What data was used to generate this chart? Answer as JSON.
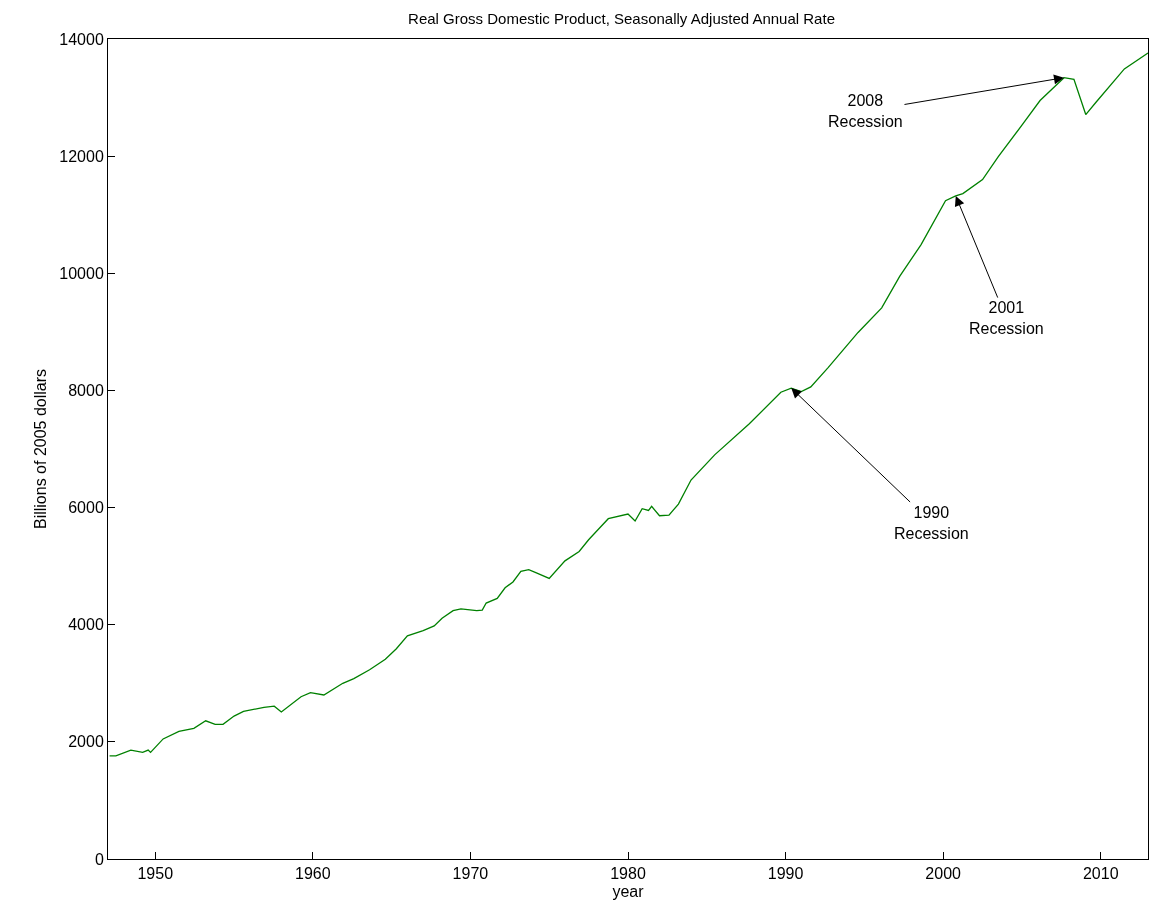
{
  "chart_data": {
    "type": "line",
    "title": "Real Gross Domestic Product, Seasonally Adjusted Annual Rate",
    "xlabel": "year",
    "ylabel": "Billions of 2005 dollars",
    "xlim": [
      1947,
      2013
    ],
    "xticks": [
      1950,
      1960,
      1970,
      1980,
      1990,
      2000,
      2010
    ],
    "ylim": [
      0,
      14000
    ],
    "yticks": [
      0,
      2000,
      4000,
      6000,
      8000,
      10000,
      12000,
      14000
    ],
    "marker": "none",
    "line_style": "solid",
    "series": [
      {
        "color": "#008000",
        "x": [
          1947.1,
          1947.5,
          1948.45,
          1949.2,
          1949.55,
          1949.7,
          1950.5,
          1951.5,
          1952.45,
          1953.2,
          1953.8,
          1954.3,
          1955.0,
          1955.6,
          1956.9,
          1957.55,
          1958.0,
          1959.25,
          1959.85,
          1960.7,
          1961.9,
          1962.6,
          1963.6,
          1964.6,
          1965.3,
          1966.0,
          1967.0,
          1967.7,
          1968.2,
          1968.9,
          1969.4,
          1970.4,
          1970.75,
          1971.0,
          1971.7,
          1972.2,
          1972.7,
          1973.2,
          1973.7,
          1974.15,
          1975.0,
          1976.0,
          1976.9,
          1977.5,
          1978.3,
          1978.75,
          1980.0,
          1980.45,
          1980.9,
          1981.3,
          1981.5,
          1982.0,
          1982.6,
          1983.2,
          1984.0,
          1985.5,
          1987.7,
          1989.7,
          1990.36,
          1991.0,
          1991.6,
          1992.7,
          1994.6,
          1996.1,
          1997.25,
          1998.6,
          2000.15,
          2000.8,
          2001.25,
          2002.5,
          2003.5,
          2005.0,
          2006.15,
          2007.67,
          2008.3,
          2009.05,
          2009.7,
          2011.5,
          2013.0
        ],
        "values": [
          1760,
          1760,
          1860,
          1820,
          1860,
          1820,
          2050,
          2180,
          2230,
          2360,
          2300,
          2300,
          2440,
          2520,
          2590,
          2610,
          2510,
          2770,
          2840,
          2800,
          3000,
          3080,
          3230,
          3410,
          3590,
          3810,
          3900,
          3980,
          4110,
          4240,
          4270,
          4240,
          4250,
          4370,
          4450,
          4630,
          4730,
          4910,
          4940,
          4890,
          4790,
          5090,
          5250,
          5450,
          5680,
          5810,
          5890,
          5770,
          5980,
          5950,
          6020,
          5860,
          5870,
          6060,
          6470,
          6900,
          7430,
          7970,
          8040,
          7980,
          8060,
          8390,
          8990,
          9410,
          9950,
          10490,
          11240,
          11320,
          11360,
          11600,
          11990,
          12530,
          12950,
          13340,
          13310,
          12710,
          12920,
          13490,
          13760
        ]
      }
    ],
    "annotations": [
      {
        "text": "2008\nRecession",
        "x": 2007.67,
        "y": 13340
      },
      {
        "text": "2001\nRecession",
        "x": 2000.8,
        "y": 11320
      },
      {
        "text": "1990\nRecession",
        "x": 1990.36,
        "y": 8040
      }
    ]
  }
}
